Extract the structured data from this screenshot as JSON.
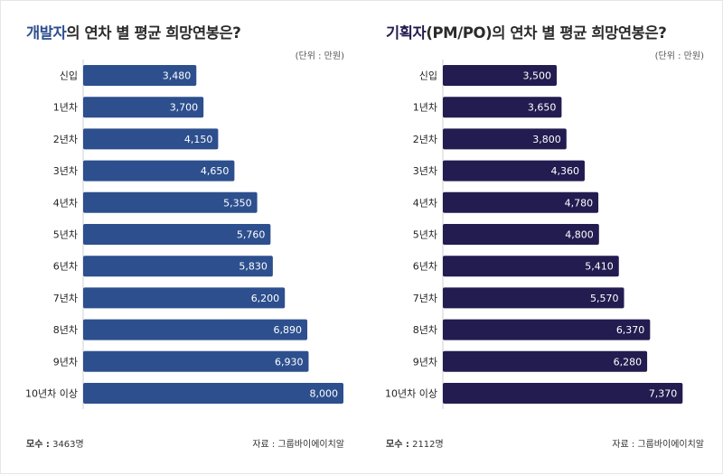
{
  "colors": {
    "developer_bar": "#2d4f8e",
    "planner_bar": "#221c50",
    "developer_title_accent": "#2d4f8e",
    "planner_title_accent": "#221c50"
  },
  "chart_data": [
    {
      "type": "bar",
      "orientation": "horizontal",
      "title_highlight": "개발자",
      "title_rest": "의 연차 별 평균 희망연봉은?",
      "unit_note": "(단위 : 만원)",
      "categories": [
        "신입",
        "1년차",
        "2년차",
        "3년차",
        "4년차",
        "5년차",
        "6년차",
        "7년차",
        "8년차",
        "9년차",
        "10년차 이상"
      ],
      "value_labels": [
        "3,480",
        "3,700",
        "4,150",
        "4,650",
        "5,350",
        "5,760",
        "5,830",
        "6,200",
        "6,890",
        "6,930",
        "8,000"
      ],
      "values": [
        3480,
        3700,
        4150,
        4650,
        5350,
        5760,
        5830,
        6200,
        6890,
        6930,
        8000
      ],
      "sample_label": "모수 :",
      "sample_value": "3463명",
      "source": "자료 : 그룹바이에이치알",
      "grid": false
    },
    {
      "type": "bar",
      "orientation": "horizontal",
      "title_highlight": "기획자",
      "title_rest": "(PM/PO)의 연차 별 평균 희망연봉은?",
      "unit_note": "(단위 : 만원)",
      "categories": [
        "신입",
        "1년차",
        "2년차",
        "3년차",
        "4년차",
        "5년차",
        "6년차",
        "7년차",
        "8년차",
        "9년차",
        "10년차 이상"
      ],
      "value_labels": [
        "3,500",
        "3,650",
        "3,800",
        "4,360",
        "4,780",
        "4,800",
        "5,410",
        "5,570",
        "6,370",
        "6,280",
        "7,370"
      ],
      "values": [
        3500,
        3650,
        3800,
        4360,
        4780,
        4800,
        5410,
        5570,
        6370,
        6280,
        7370
      ],
      "sample_label": "모수 :",
      "sample_value": "2112명",
      "source": "자료 : 그룹바이에이치알",
      "grid": false
    }
  ]
}
